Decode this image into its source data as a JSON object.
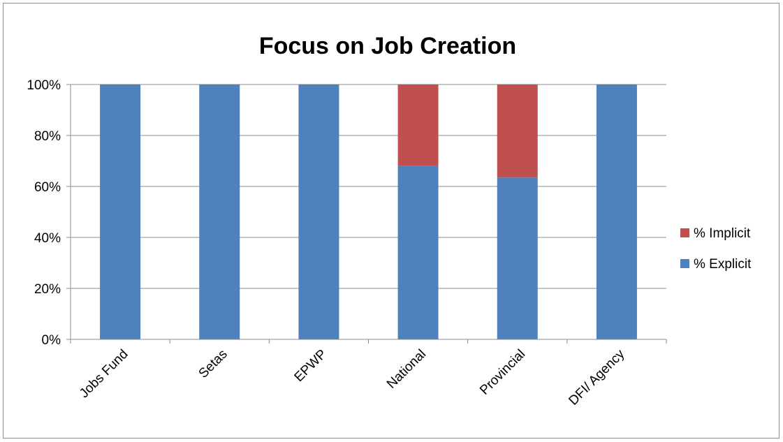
{
  "chart_data": {
    "type": "bar",
    "stacked": true,
    "title": "Focus on Job Creation",
    "xlabel": "",
    "ylabel": "",
    "categories": [
      "Jobs Fund",
      "Setas",
      "EPWP",
      "National",
      "Provincial",
      "DFI/ Agency"
    ],
    "series": [
      {
        "name": "% Explicit",
        "color": "#4F81BD",
        "values": [
          100,
          100,
          100,
          68,
          63.5,
          100
        ]
      },
      {
        "name": "% Implicit",
        "color": "#C0504D",
        "values": [
          0,
          0,
          0,
          32,
          36.5,
          0
        ]
      }
    ],
    "ylim": [
      0,
      100
    ],
    "yticks": [
      "0%",
      "20%",
      "40%",
      "60%",
      "80%",
      "100%"
    ],
    "grid": true,
    "legend": {
      "position": "right",
      "entries": [
        "% Implicit",
        "% Explicit"
      ]
    }
  }
}
